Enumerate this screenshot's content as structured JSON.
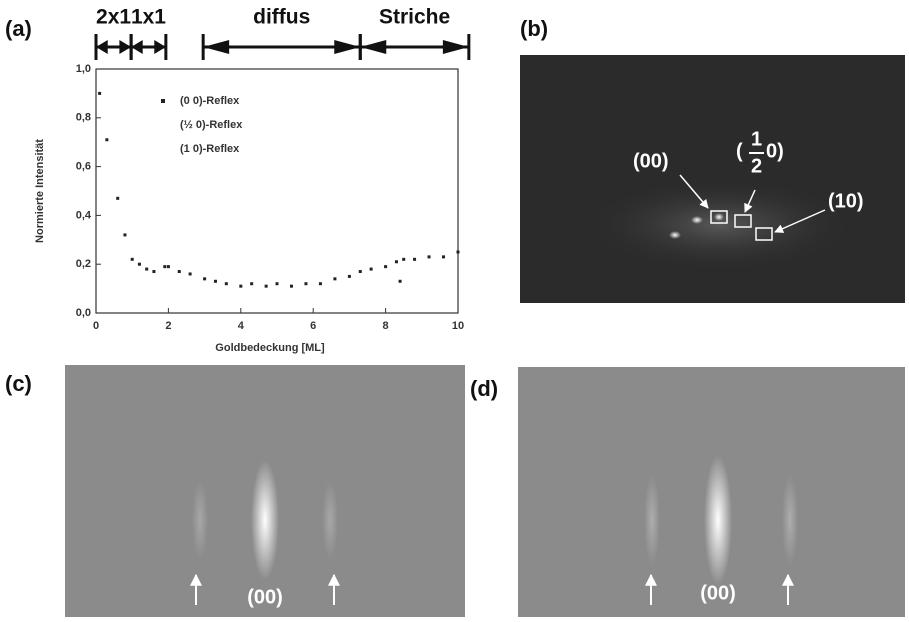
{
  "chart_data": {
    "type": "scatter",
    "panel_label": "(a)",
    "xlabel": "Goldbedeckung [ML]",
    "ylabel": "Normierte Intensität",
    "xlim": [
      0,
      10
    ],
    "xticks": [
      0,
      2,
      4,
      6,
      8,
      10
    ],
    "ylim": [
      0,
      1
    ],
    "yticks": [
      {
        "value": 0,
        "label": "0,0"
      },
      {
        "value": 0.2,
        "label": "0,2"
      },
      {
        "value": 0.4,
        "label": "0,4"
      },
      {
        "value": 0.6,
        "label": "0,6"
      },
      {
        "value": 0.8,
        "label": "0,8"
      },
      {
        "value": 1,
        "label": "1,0"
      }
    ],
    "phases": [
      {
        "label": "2x1",
        "start": 0,
        "end": 0.97
      },
      {
        "label": "1x1",
        "start": 0.97,
        "end": 1.93
      },
      {
        "label": "diffus",
        "start": 2.96,
        "end": 7.3
      },
      {
        "label": "Striche",
        "start": 7.3,
        "end": 10.3
      }
    ],
    "series": [
      {
        "name": "(0 0)-Reflex",
        "color": "#222222",
        "x": [
          0.1,
          0.3,
          0.6,
          0.8,
          1.0,
          1.2,
          1.4,
          1.6,
          1.9,
          2.0,
          2.3,
          2.6,
          3.0,
          3.3,
          3.6,
          4.0,
          4.3,
          4.7,
          5.0,
          5.4,
          5.8,
          6.2,
          6.6,
          7.0,
          7.3,
          7.6,
          8.0,
          8.3,
          8.4,
          8.5,
          8.8,
          9.2,
          9.6,
          10.0
        ],
        "values": [
          0.9,
          0.71,
          0.47,
          0.32,
          0.22,
          0.2,
          0.18,
          0.17,
          0.19,
          0.19,
          0.17,
          0.16,
          0.14,
          0.13,
          0.12,
          0.11,
          0.12,
          0.11,
          0.12,
          0.11,
          0.12,
          0.12,
          0.14,
          0.15,
          0.17,
          0.18,
          0.19,
          0.21,
          0.13,
          0.22,
          0.22,
          0.23,
          0.23,
          0.25
        ]
      },
      {
        "name": "(½ 0)-Reflex",
        "color": "#222222",
        "x": [],
        "values": []
      },
      {
        "name": "(1 0)-Reflex",
        "color": "#222222",
        "x": [],
        "values": []
      }
    ]
  },
  "panels": {
    "b": {
      "label": "(b)",
      "spot_00": "(00)",
      "spot_half": {
        "open": "(",
        "numerator": "1",
        "denominator": "2",
        "rest": "0)"
      },
      "spot_10": "(10)"
    },
    "c": {
      "label": "(c)",
      "spot_00": "(00)"
    },
    "d": {
      "label": "(d)",
      "spot_00": "(00)"
    }
  }
}
